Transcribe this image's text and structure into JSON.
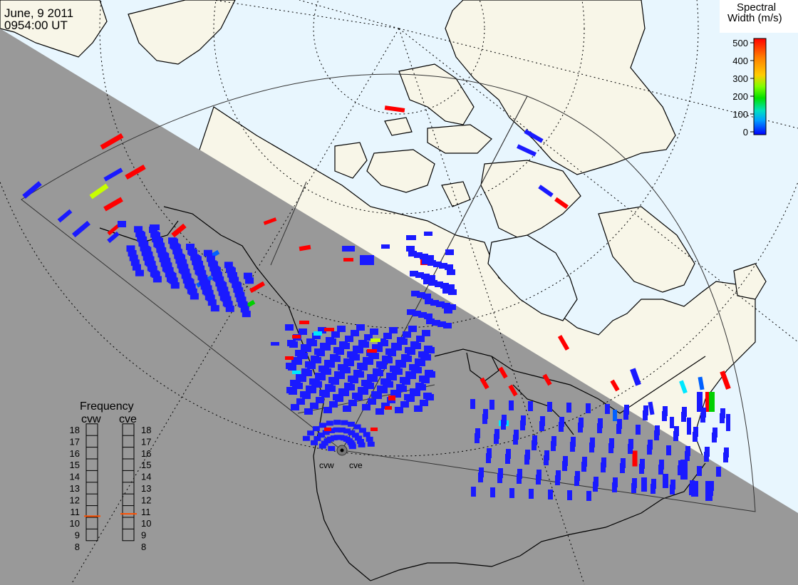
{
  "header": {
    "date": "June, 9 2011",
    "time": "0954:00 UT"
  },
  "colorbar": {
    "title_line1": "Spectral",
    "title_line2": "Width (m/s)",
    "ticks": [
      "500",
      "400",
      "300",
      "200",
      "100",
      "0"
    ],
    "colors": [
      "#ff0000",
      "#ff8000",
      "#ffcc00",
      "#c8ff00",
      "#00e000",
      "#00e0c0",
      "#00a0ff",
      "#0040ff",
      "#0000ff"
    ]
  },
  "frequency_panel": {
    "title": "Frequency",
    "left_label": "cvw",
    "right_label": "cve",
    "ticks": [
      "18",
      "17",
      "16",
      "15",
      "14",
      "13",
      "12",
      "11",
      "10",
      "9",
      "8"
    ],
    "left_marker_value": 10.6,
    "right_marker_value": 10.8,
    "marker_color": "#ff5000"
  },
  "radars": {
    "west_label": "cvw",
    "east_label": "cve"
  },
  "map_colors": {
    "ocean": "#e8f6fe",
    "land_day": "#f8f6e8",
    "night_shade": "#999999",
    "coast": "#000000"
  }
}
